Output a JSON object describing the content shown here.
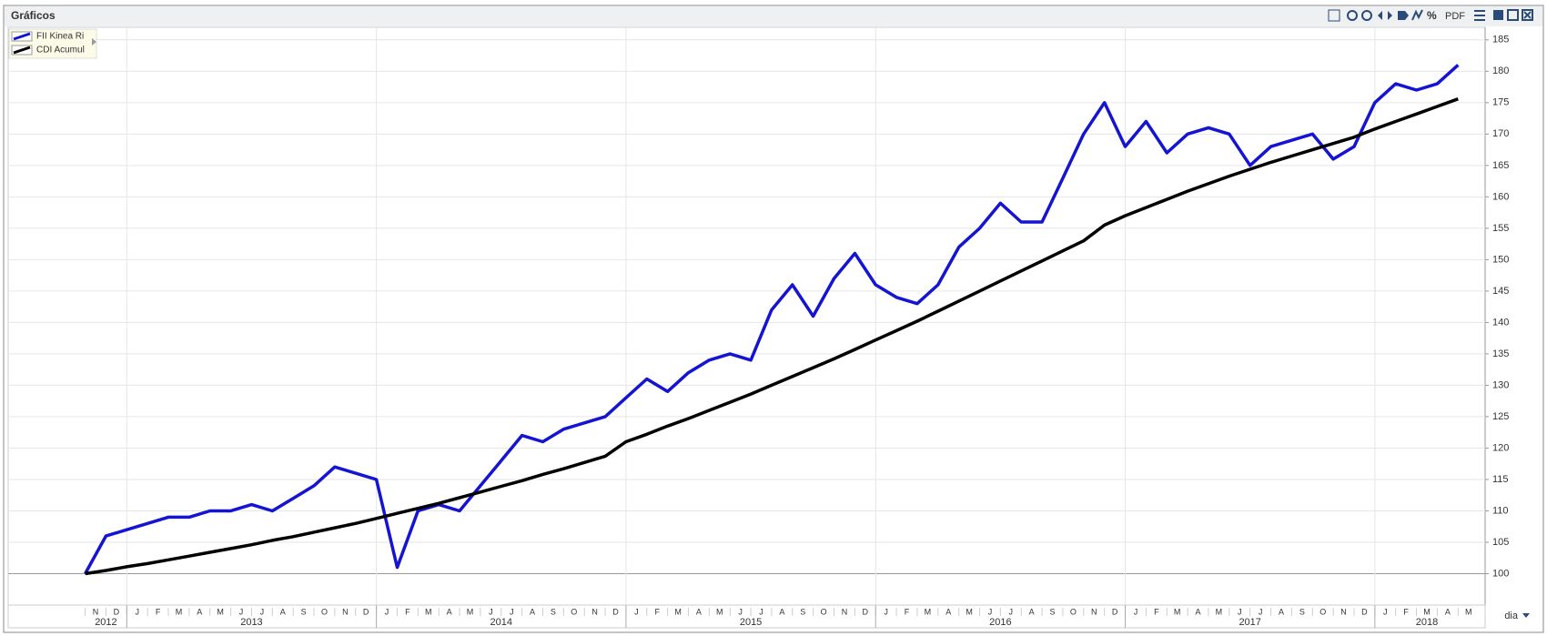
{
  "window_title": "Gráficos",
  "toolbar": {
    "pdf": "PDF",
    "period": "dia"
  },
  "chart_data": {
    "type": "line",
    "x": [
      "2012-11",
      "2012-12",
      "2013-01",
      "2013-02",
      "2013-03",
      "2013-04",
      "2013-05",
      "2013-06",
      "2013-07",
      "2013-08",
      "2013-09",
      "2013-10",
      "2013-11",
      "2013-12",
      "2014-01",
      "2014-02",
      "2014-03",
      "2014-04",
      "2014-05",
      "2014-06",
      "2014-07",
      "2014-08",
      "2014-09",
      "2014-10",
      "2014-11",
      "2014-12",
      "2015-01",
      "2015-02",
      "2015-03",
      "2015-04",
      "2015-05",
      "2015-06",
      "2015-07",
      "2015-08",
      "2015-09",
      "2015-10",
      "2015-11",
      "2015-12",
      "2016-01",
      "2016-02",
      "2016-03",
      "2016-04",
      "2016-05",
      "2016-06",
      "2016-07",
      "2016-08",
      "2016-09",
      "2016-10",
      "2016-11",
      "2016-12",
      "2017-01",
      "2017-02",
      "2017-03",
      "2017-04",
      "2017-05",
      "2017-06",
      "2017-07",
      "2017-08",
      "2017-09",
      "2017-10",
      "2017-11",
      "2017-12",
      "2018-01",
      "2018-02",
      "2018-03",
      "2018-04",
      "2018-05"
    ],
    "month_labels": [
      "N",
      "D",
      "J",
      "F",
      "M",
      "A",
      "M",
      "J",
      "J",
      "A",
      "S",
      "O",
      "N",
      "D",
      "J",
      "F",
      "M",
      "A",
      "M",
      "J",
      "J",
      "A",
      "S",
      "O",
      "N",
      "D",
      "J",
      "F",
      "M",
      "A",
      "M",
      "J",
      "J",
      "A",
      "S",
      "O",
      "N",
      "D",
      "J",
      "F",
      "M",
      "A",
      "M",
      "J",
      "J",
      "A",
      "S",
      "O",
      "N",
      "D",
      "J",
      "F",
      "M",
      "A",
      "M",
      "J",
      "J",
      "A",
      "S",
      "O",
      "N",
      "D",
      "J",
      "F",
      "M",
      "A",
      "M"
    ],
    "years": [
      "2012",
      "2013",
      "2014",
      "2015",
      "2016",
      "2017",
      "2018"
    ],
    "series": [
      {
        "name": "FII Kinea Ri",
        "color": "#1414d2",
        "values": [
          100,
          106,
          107,
          108,
          109,
          109,
          110,
          110,
          111,
          110,
          112,
          114,
          117,
          116,
          115,
          101,
          110,
          111,
          110,
          114,
          118,
          122,
          121,
          123,
          124,
          125,
          128,
          131,
          129,
          132,
          134,
          135,
          134,
          142,
          146,
          141,
          147,
          151,
          146,
          144,
          143,
          146,
          152,
          155,
          159,
          156,
          156,
          163,
          170,
          175,
          168,
          172,
          167,
          170,
          171,
          170,
          165,
          168,
          169,
          170,
          166,
          168,
          175,
          178,
          177,
          178,
          181
        ]
      },
      {
        "name": "CDI Acumul",
        "color": "#000000",
        "values": [
          100,
          100.5,
          101.1,
          101.6,
          102.2,
          102.8,
          103.4,
          104,
          104.6,
          105.3,
          105.9,
          106.6,
          107.3,
          108,
          108.8,
          109.6,
          110.4,
          111.2,
          112.1,
          113,
          113.9,
          114.8,
          115.8,
          116.7,
          117.7,
          118.7,
          121,
          122.2,
          123.5,
          124.7,
          126,
          127.3,
          128.6,
          130,
          131.4,
          132.8,
          134.2,
          135.7,
          137.2,
          138.7,
          140.2,
          141.8,
          143.4,
          145,
          146.6,
          148.2,
          149.8,
          151.4,
          153,
          155.5,
          157,
          158.3,
          159.6,
          160.9,
          162.1,
          163.3,
          164.4,
          165.5,
          166.5,
          167.5,
          168.5,
          169.5,
          170.8,
          172,
          173.2,
          174.4,
          175.6
        ]
      }
    ],
    "ylim": [
      95,
      187
    ],
    "yticks": [
      100,
      105,
      110,
      115,
      120,
      125,
      130,
      135,
      140,
      145,
      150,
      155,
      160,
      165,
      170,
      175,
      180,
      185
    ],
    "grid": true,
    "legend": "top-left"
  }
}
